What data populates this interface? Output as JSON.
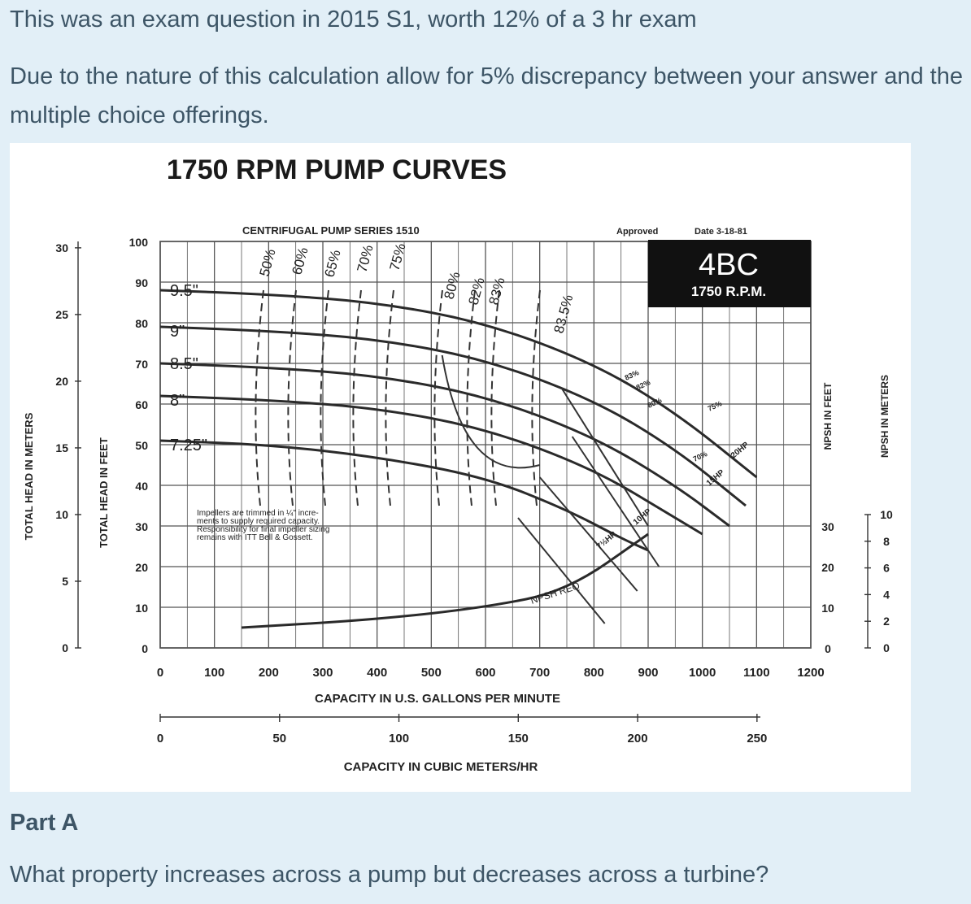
{
  "question": {
    "intro": "This was an exam question in 2015 S1, worth 12% of a 3 hr exam",
    "note": "Due to the nature of this calculation allow for 5% discrepancy between your answer and the multiple choice offerings.",
    "part_title": "Part A",
    "part_text": "What property increases across a pump but decreases across a turbine?"
  },
  "figure": {
    "title": "1750 RPM PUMP CURVES",
    "series_label": "CENTRIFUGAL PUMP SERIES 1510",
    "approved": "Approved",
    "date": "Date 3-18-81",
    "model": "4BC",
    "rpm": "1750 R.P.M.",
    "note_lines": [
      "Impellers are trimmed in ¼\" incre-",
      "ments to supply required capacity.",
      "Responsibility for final impeller sizing",
      "remains with ITT Bell & Gossett."
    ],
    "npsh_label": "NPSH REQ",
    "impellers": [
      "9.5\"",
      "9\"",
      "8.5\"",
      "8\"",
      "7.25\""
    ],
    "efficiencies": [
      "50%",
      "60%",
      "65%",
      "70%",
      "75%",
      "80%",
      "82%",
      "83%",
      "83.5%"
    ],
    "small_eff": [
      "83%",
      "82%",
      "80%",
      "75%",
      "70%"
    ],
    "hp": [
      "20HP",
      "15HP",
      "10HP",
      "7½HP"
    ],
    "axes": {
      "head_m_label": "TOTAL HEAD IN METERS",
      "head_m_ticks": [
        "30",
        "25",
        "20",
        "15",
        "10",
        "5",
        "0"
      ],
      "head_ft_label": "TOTAL HEAD IN FEET",
      "head_ft_ticks": [
        "100",
        "90",
        "80",
        "70",
        "60",
        "50",
        "40",
        "30",
        "20",
        "10",
        "0"
      ],
      "gpm_label": "CAPACITY IN U.S. GALLONS PER MINUTE",
      "gpm_ticks": [
        "0",
        "100",
        "200",
        "300",
        "400",
        "500",
        "600",
        "700",
        "800",
        "900",
        "1000",
        "1100",
        "1200"
      ],
      "m3_label": "CAPACITY IN CUBIC METERS/HR",
      "m3_ticks": [
        "0",
        "50",
        "100",
        "150",
        "200",
        "250"
      ],
      "npsh_ft_label": "NPSH IN FEET",
      "npsh_ft_ticks": [
        "30",
        "20",
        "10",
        "0"
      ],
      "npsh_m_label": "NPSH IN METERS",
      "npsh_m_ticks": [
        "10",
        "8",
        "6",
        "4",
        "2",
        "0"
      ]
    }
  },
  "chart_data": {
    "type": "line",
    "title": "1750 RPM PUMP CURVES",
    "xlabel": "CAPACITY IN U.S. GALLONS PER MINUTE",
    "ylabel": "TOTAL HEAD IN FEET",
    "xlim": [
      0,
      1200
    ],
    "ylim": [
      0,
      100
    ],
    "series": [
      {
        "name": "9.5\"",
        "x": [
          0,
          200,
          400,
          600,
          800,
          950,
          1100
        ],
        "y": [
          88,
          87,
          85,
          80,
          70,
          58,
          42
        ]
      },
      {
        "name": "9\"",
        "x": [
          0,
          200,
          400,
          600,
          800,
          950,
          1080
        ],
        "y": [
          79,
          78,
          76,
          71,
          61,
          49,
          35
        ]
      },
      {
        "name": "8.5\"",
        "x": [
          0,
          200,
          400,
          600,
          800,
          950,
          1050
        ],
        "y": [
          70,
          69,
          67,
          62,
          52,
          40,
          30
        ]
      },
      {
        "name": "8\"",
        "x": [
          0,
          200,
          400,
          600,
          800,
          950,
          1000
        ],
        "y": [
          62,
          61,
          59,
          54,
          44,
          32,
          28
        ]
      },
      {
        "name": "7.25\"",
        "x": [
          0,
          200,
          400,
          600,
          750,
          850,
          900
        ],
        "y": [
          51,
          50,
          47,
          42,
          34,
          27,
          24
        ]
      },
      {
        "name": "NPSH REQ",
        "x": [
          150,
          400,
          600,
          750,
          900
        ],
        "y": [
          5,
          7,
          10,
          14,
          28
        ]
      }
    ]
  }
}
